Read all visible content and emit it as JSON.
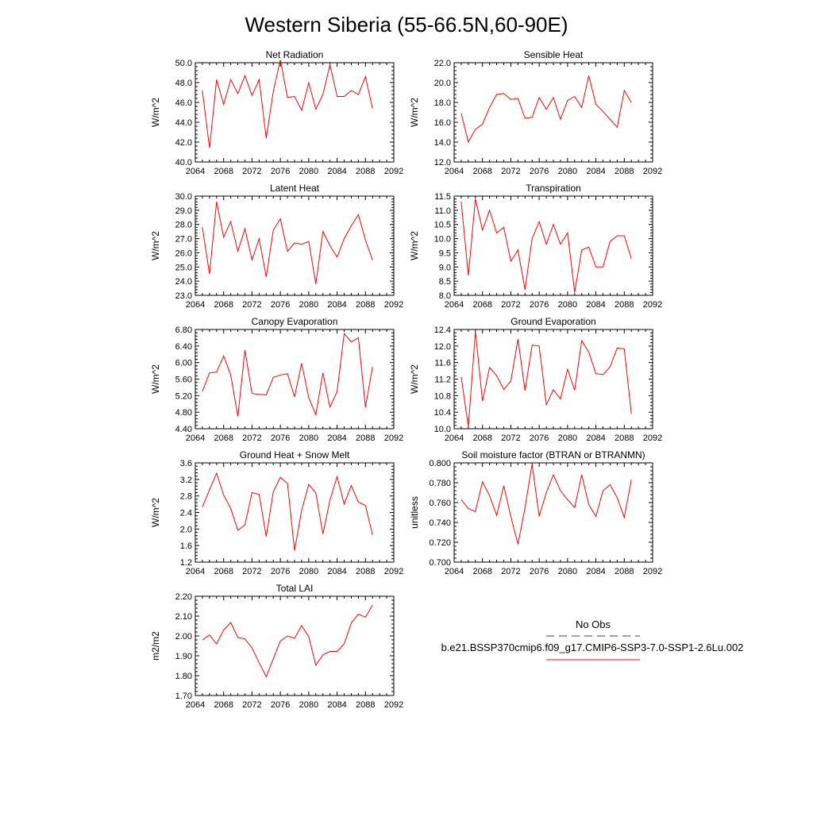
{
  "title": "Western Siberia (55-66.5N,60-90E)",
  "series_color": "#ff0000",
  "obs_color": "#3333aa",
  "legend": {
    "obs_label": "No Obs",
    "model_label": "b.e21.BSSP370cmip6.f09_g17.CMIP6-SSP3-7.0-SSP1-2.6Lu.002"
  },
  "chart_data": [
    {
      "type": "line",
      "title": "Net Radiation",
      "ylabel": "W/m^2",
      "xlim": [
        2064,
        2092
      ],
      "xticks": [
        "2064",
        "2068",
        "2072",
        "2076",
        "2080",
        "2084",
        "2088",
        "2092"
      ],
      "ylim": [
        40.0,
        50.0
      ],
      "yticks": [
        "40.0",
        "42.0",
        "44.0",
        "46.0",
        "48.0",
        "50.0"
      ],
      "x": [
        2065,
        2066,
        2067,
        2068,
        2069,
        2070,
        2071,
        2072,
        2073,
        2074,
        2075,
        2076,
        2077,
        2078,
        2079,
        2080,
        2081,
        2082,
        2083,
        2084,
        2085,
        2086,
        2087,
        2088,
        2089
      ],
      "y": [
        47.2,
        41.4,
        48.3,
        45.8,
        48.3,
        46.9,
        48.7,
        46.7,
        48.3,
        42.4,
        47.1,
        50.3,
        46.5,
        46.6,
        45.2,
        48.0,
        45.3,
        46.8,
        49.8,
        46.6,
        46.6,
        47.2,
        46.8,
        48.6,
        45.4
      ]
    },
    {
      "type": "line",
      "title": "Sensible Heat",
      "ylabel": "W/m^2",
      "xlim": [
        2064,
        2092
      ],
      "xticks": [
        "2064",
        "2068",
        "2072",
        "2076",
        "2080",
        "2084",
        "2088",
        "2092"
      ],
      "ylim": [
        12.0,
        22.0
      ],
      "yticks": [
        "12.0",
        "14.0",
        "16.0",
        "18.0",
        "20.0",
        "22.0"
      ],
      "x": [
        2065,
        2066,
        2067,
        2068,
        2069,
        2070,
        2071,
        2072,
        2073,
        2074,
        2075,
        2076,
        2077,
        2078,
        2079,
        2080,
        2081,
        2082,
        2083,
        2084,
        2085,
        2086,
        2087,
        2088,
        2089
      ],
      "y": [
        16.9,
        14.0,
        15.3,
        15.8,
        17.5,
        18.8,
        18.9,
        18.3,
        18.4,
        16.4,
        16.5,
        18.5,
        17.3,
        18.5,
        16.3,
        18.2,
        18.6,
        17.5,
        20.7,
        17.8,
        17.1,
        16.3,
        15.5,
        19.2,
        18.0
      ]
    },
    {
      "type": "line",
      "title": "Latent Heat",
      "ylabel": "W/m^2",
      "xlim": [
        2064,
        2092
      ],
      "xticks": [
        "2064",
        "2068",
        "2072",
        "2076",
        "2080",
        "2084",
        "2088",
        "2092"
      ],
      "ylim": [
        23.0,
        30.0
      ],
      "yticks": [
        "23.0",
        "24.0",
        "25.0",
        "26.0",
        "27.0",
        "28.0",
        "29.0",
        "30.0"
      ],
      "x": [
        2065,
        2066,
        2067,
        2068,
        2069,
        2070,
        2071,
        2072,
        2073,
        2074,
        2075,
        2076,
        2077,
        2078,
        2079,
        2080,
        2081,
        2082,
        2083,
        2084,
        2085,
        2086,
        2087,
        2088,
        2089
      ],
      "y": [
        27.8,
        24.5,
        29.6,
        27.1,
        28.2,
        26.1,
        27.7,
        25.5,
        27.0,
        24.3,
        27.6,
        28.4,
        26.1,
        26.7,
        26.6,
        26.8,
        23.8,
        27.5,
        26.5,
        25.7,
        27.0,
        27.9,
        28.7,
        26.9,
        25.5
      ]
    },
    {
      "type": "line",
      "title": "Transpiration",
      "ylabel": "W/m^2",
      "xlim": [
        2064,
        2092
      ],
      "xticks": [
        "2064",
        "2068",
        "2072",
        "2076",
        "2080",
        "2084",
        "2088",
        "2092"
      ],
      "ylim": [
        8.0,
        11.5
      ],
      "yticks": [
        "8.0",
        "8.5",
        "9.0",
        "9.5",
        "10.0",
        "10.5",
        "11.0",
        "11.5"
      ],
      "x": [
        2065,
        2066,
        2067,
        2068,
        2069,
        2070,
        2071,
        2072,
        2073,
        2074,
        2075,
        2076,
        2077,
        2078,
        2079,
        2080,
        2081,
        2082,
        2083,
        2084,
        2085,
        2086,
        2087,
        2088,
        2089
      ],
      "y": [
        11.3,
        8.7,
        11.4,
        10.3,
        11.0,
        10.2,
        10.4,
        9.2,
        9.6,
        8.2,
        10.0,
        10.6,
        9.8,
        10.5,
        9.8,
        10.2,
        8.1,
        9.6,
        9.7,
        9.0,
        9.0,
        9.9,
        10.1,
        10.1,
        9.3
      ]
    },
    {
      "type": "line",
      "title": "Canopy Evaporation",
      "ylabel": "W/m^2",
      "xlim": [
        2064,
        2092
      ],
      "xticks": [
        "2064",
        "2068",
        "2072",
        "2076",
        "2080",
        "2084",
        "2088",
        "2092"
      ],
      "ylim": [
        4.4,
        6.8
      ],
      "yticks": [
        "4.40",
        "4.80",
        "5.20",
        "5.60",
        "6.00",
        "6.40",
        "6.80"
      ],
      "x": [
        2065,
        2066,
        2067,
        2068,
        2069,
        2070,
        2071,
        2072,
        2073,
        2074,
        2075,
        2076,
        2077,
        2078,
        2079,
        2080,
        2081,
        2082,
        2083,
        2084,
        2085,
        2086,
        2087,
        2088,
        2089
      ],
      "y": [
        5.3,
        5.75,
        5.77,
        6.16,
        5.7,
        4.7,
        6.3,
        5.25,
        5.23,
        5.22,
        5.64,
        5.7,
        5.73,
        5.17,
        5.98,
        5.15,
        4.74,
        5.75,
        4.92,
        5.3,
        6.7,
        6.5,
        6.6,
        4.92,
        5.9
      ]
    },
    {
      "type": "line",
      "title": "Ground Evaporation",
      "ylabel": "W/m^2",
      "xlim": [
        2064,
        2092
      ],
      "xticks": [
        "2064",
        "2068",
        "2072",
        "2076",
        "2080",
        "2084",
        "2088",
        "2092"
      ],
      "ylim": [
        10.0,
        12.4
      ],
      "yticks": [
        "10.0",
        "10.4",
        "10.8",
        "11.2",
        "11.6",
        "12.0",
        "12.4"
      ],
      "x": [
        2065,
        2066,
        2067,
        2068,
        2069,
        2070,
        2071,
        2072,
        2073,
        2074,
        2075,
        2076,
        2077,
        2078,
        2079,
        2080,
        2081,
        2082,
        2083,
        2084,
        2085,
        2086,
        2087,
        2088,
        2089
      ],
      "y": [
        11.25,
        10.05,
        12.35,
        10.67,
        11.48,
        11.28,
        10.95,
        11.15,
        12.17,
        10.92,
        12.02,
        12.0,
        10.58,
        10.94,
        10.72,
        11.44,
        10.93,
        12.13,
        11.85,
        11.33,
        11.31,
        11.5,
        11.95,
        11.93,
        10.36
      ]
    },
    {
      "type": "line",
      "title": "Ground Heat + Snow Melt",
      "ylabel": "W/m^2",
      "xlim": [
        2064,
        2092
      ],
      "xticks": [
        "2064",
        "2068",
        "2072",
        "2076",
        "2080",
        "2084",
        "2088",
        "2092"
      ],
      "ylim": [
        1.2,
        3.6
      ],
      "yticks": [
        "1.2",
        "1.6",
        "2.0",
        "2.4",
        "2.8",
        "3.2",
        "3.6"
      ],
      "x": [
        2065,
        2066,
        2067,
        2068,
        2069,
        2070,
        2071,
        2072,
        2073,
        2074,
        2075,
        2076,
        2077,
        2078,
        2079,
        2080,
        2081,
        2082,
        2083,
        2084,
        2085,
        2086,
        2087,
        2088,
        2089
      ],
      "y": [
        2.53,
        2.95,
        3.35,
        2.82,
        2.5,
        1.97,
        2.1,
        2.88,
        2.84,
        1.82,
        2.9,
        3.25,
        3.1,
        1.48,
        2.45,
        3.08,
        2.87,
        1.88,
        2.7,
        3.27,
        2.6,
        3.05,
        2.65,
        2.57,
        1.86
      ]
    },
    {
      "type": "line",
      "title": "Soil moisture factor (BTRAN or BTRANMN)",
      "ylabel": "unitless",
      "xlim": [
        2064,
        2092
      ],
      "xticks": [
        "2064",
        "2068",
        "2072",
        "2076",
        "2080",
        "2084",
        "2088",
        "2092"
      ],
      "ylim": [
        0.7,
        0.8
      ],
      "yticks": [
        "0.700",
        "0.720",
        "0.740",
        "0.760",
        "0.780",
        "0.800"
      ],
      "x": [
        2065,
        2066,
        2067,
        2068,
        2069,
        2070,
        2071,
        2072,
        2073,
        2074,
        2075,
        2076,
        2077,
        2078,
        2079,
        2080,
        2081,
        2082,
        2083,
        2084,
        2085,
        2086,
        2087,
        2088,
        2089
      ],
      "y": [
        0.763,
        0.754,
        0.751,
        0.781,
        0.767,
        0.747,
        0.777,
        0.746,
        0.718,
        0.755,
        0.799,
        0.746,
        0.77,
        0.788,
        0.772,
        0.763,
        0.755,
        0.788,
        0.758,
        0.746,
        0.772,
        0.778,
        0.765,
        0.745,
        0.783
      ]
    },
    {
      "type": "line",
      "title": "Total LAI",
      "ylabel": "m2/m2",
      "xlim": [
        2064,
        2092
      ],
      "xticks": [
        "2064",
        "2068",
        "2072",
        "2076",
        "2080",
        "2084",
        "2088",
        "2092"
      ],
      "ylim": [
        1.7,
        2.2
      ],
      "yticks": [
        "1.70",
        "1.80",
        "1.90",
        "2.00",
        "2.10",
        "2.20"
      ],
      "x": [
        2065,
        2066,
        2067,
        2068,
        2069,
        2070,
        2071,
        2072,
        2073,
        2074,
        2075,
        2076,
        2077,
        2078,
        2079,
        2080,
        2081,
        2082,
        2083,
        2084,
        2085,
        2086,
        2087,
        2088,
        2089
      ],
      "y": [
        1.98,
        2.005,
        1.96,
        2.03,
        2.068,
        1.992,
        1.985,
        1.94,
        1.865,
        1.795,
        1.885,
        1.975,
        2.0,
        1.988,
        2.052,
        1.996,
        1.852,
        1.905,
        1.922,
        1.922,
        1.96,
        2.065,
        2.11,
        2.095,
        2.155
      ]
    }
  ]
}
